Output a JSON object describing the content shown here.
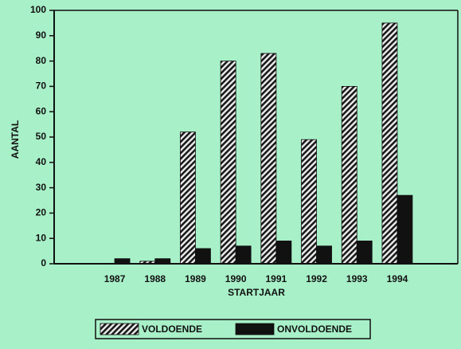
{
  "chart_data": {
    "type": "bar",
    "x_label": "STARTJAAR",
    "y_label": "AANTAL",
    "categories": [
      null,
      "1987",
      "1988",
      "1989",
      "1990",
      "1991",
      "1992",
      "1993",
      "1994",
      null
    ],
    "series": [
      {
        "name": "VOLDOENDE",
        "color": "#1a1a1a",
        "pattern": "hatch",
        "values": [
          null,
          0,
          1,
          52,
          80,
          83,
          49,
          70,
          95,
          null
        ]
      },
      {
        "name": "ONVOLDOENDE",
        "color": "#111111",
        "values": [
          null,
          2,
          2,
          6,
          7,
          9,
          7,
          9,
          27,
          null
        ]
      }
    ],
    "ylim": [
      0,
      100
    ],
    "yticks": [
      0,
      10,
      20,
      30,
      40,
      50,
      60,
      70,
      80,
      90,
      100
    ],
    "legend": "bottom"
  }
}
